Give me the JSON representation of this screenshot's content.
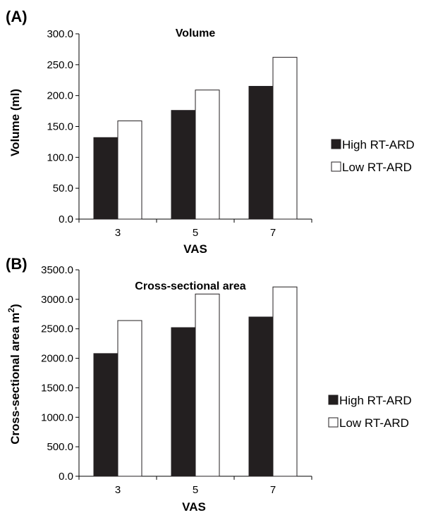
{
  "chart_data": [
    {
      "type": "bar",
      "panel_label": "(A)",
      "title": "Volume",
      "xlabel": "VAS",
      "ylabel": "Volume (ml)",
      "ylabel_sup": "",
      "categories": [
        "3",
        "5",
        "7"
      ],
      "ylim": [
        0,
        300
      ],
      "yticks": [
        "0.0",
        "50.0",
        "100.0",
        "150.0",
        "200.0",
        "250.0",
        "300.0"
      ],
      "grid": false,
      "legend_position": "right",
      "series": [
        {
          "name": "High RT-ARD",
          "color": "#231f20",
          "values": [
            132,
            176,
            215
          ]
        },
        {
          "name": "Low RT-ARD",
          "color": "#ffffff",
          "values": [
            159,
            209,
            262
          ]
        }
      ]
    },
    {
      "type": "bar",
      "panel_label": "(B)",
      "title": "Cross-sectional area",
      "xlabel": "VAS",
      "ylabel": "Cross-sectional area m",
      "ylabel_sup": "2",
      "ylabel_tail": ")",
      "categories": [
        "3",
        "5",
        "7"
      ],
      "ylim": [
        0,
        3500
      ],
      "yticks": [
        "0.0",
        "500.0",
        "1000.0",
        "1500.0",
        "2000.0",
        "2500.0",
        "3000.0",
        "3500.0"
      ],
      "grid": false,
      "legend_position": "right",
      "series": [
        {
          "name": "High RT-ARD",
          "color": "#231f20",
          "values": [
            2080,
            2520,
            2700
          ]
        },
        {
          "name": "Low RT-ARD",
          "color": "#ffffff",
          "values": [
            2640,
            3090,
            3210
          ]
        }
      ]
    }
  ]
}
